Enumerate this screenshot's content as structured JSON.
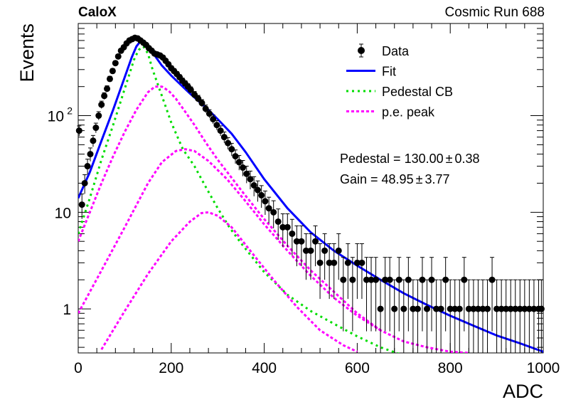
{
  "header": {
    "experiment": "CaloX",
    "run_label": "Cosmic Run 688"
  },
  "fit_results": {
    "pedestal_text": "Pedestal = 130.00",
    "pedestal_err": "0.38",
    "gain_text": "Gain = 48.95",
    "gain_err": "3.77",
    "pm": "±"
  },
  "chart_data": {
    "type": "scatter",
    "title": "",
    "xlabel": "ADC",
    "ylabel": "Events",
    "xlim": [
      0,
      1000
    ],
    "ylim": [
      0.35,
      900
    ],
    "yscale": "log",
    "x_ticks": [
      0,
      200,
      400,
      600,
      800,
      1000
    ],
    "y_ticks": [
      {
        "value": 1,
        "label": "1"
      },
      {
        "value": 10,
        "label": "10"
      },
      {
        "value": 100,
        "label": "10",
        "sup": "2"
      }
    ],
    "grid": false,
    "legend_position": "top-right",
    "colors": {
      "data": "#000000",
      "fit": "#0000ff",
      "pedestal": "#00dd00",
      "pe_peak": "#ff00ff"
    },
    "series": [
      {
        "name": "Data",
        "style": "markers-with-error-bars",
        "x": [
          2,
          8,
          14,
          20,
          26,
          32,
          38,
          44,
          50,
          56,
          62,
          68,
          74,
          80,
          86,
          92,
          98,
          104,
          110,
          116,
          122,
          128,
          134,
          140,
          146,
          152,
          158,
          164,
          170,
          176,
          182,
          188,
          194,
          200,
          206,
          212,
          218,
          224,
          230,
          236,
          242,
          250,
          258,
          266,
          274,
          282,
          290,
          298,
          306,
          314,
          322,
          330,
          338,
          346,
          354,
          362,
          370,
          378,
          386,
          394,
          402,
          410,
          420,
          430,
          440,
          450,
          460,
          470,
          480,
          490,
          500,
          510,
          520,
          530,
          540,
          550,
          560,
          570,
          580,
          590,
          600,
          610,
          620,
          630,
          640,
          650,
          660,
          670,
          680,
          690,
          700,
          710,
          720,
          730,
          740,
          750,
          760,
          770,
          780,
          790,
          800,
          810,
          820,
          830,
          840,
          850,
          860,
          870,
          880,
          890,
          900,
          910,
          920,
          930,
          940,
          950,
          960,
          970,
          980,
          990,
          996
        ],
        "y": [
          70,
          12,
          20,
          30,
          40,
          55,
          75,
          100,
          130,
          160,
          190,
          240,
          290,
          350,
          410,
          470,
          510,
          560,
          600,
          620,
          640,
          630,
          600,
          570,
          540,
          500,
          470,
          440,
          430,
          420,
          400,
          370,
          340,
          310,
          290,
          270,
          250,
          230,
          215,
          200,
          185,
          165,
          150,
          135,
          118,
          105,
          92,
          80,
          70,
          60,
          52,
          45,
          38,
          33,
          29,
          25,
          22,
          19,
          17,
          15,
          13,
          11,
          10,
          8,
          7,
          7,
          6,
          5,
          5,
          4,
          4,
          5,
          3,
          4,
          3,
          3,
          4,
          2,
          3,
          2,
          3,
          3,
          2,
          2,
          2,
          1,
          2,
          2,
          1,
          2,
          1,
          2,
          1,
          1,
          2,
          1,
          2,
          1,
          1,
          2,
          1,
          1,
          1,
          2,
          1,
          1,
          1,
          1,
          1,
          2,
          1,
          1,
          1,
          1,
          1,
          1,
          1,
          1,
          1,
          1,
          1
        ]
      },
      {
        "name": "Fit",
        "style": "solid-line",
        "x": [
          0,
          25,
          50,
          75,
          100,
          115,
          125,
          135,
          145,
          160,
          180,
          200,
          220,
          240,
          260,
          280,
          300,
          330,
          360,
          400,
          450,
          500,
          550,
          600,
          650,
          700,
          750,
          800,
          850,
          900,
          950,
          1000
        ],
        "y": [
          14,
          26,
          55,
          115,
          250,
          400,
          520,
          600,
          560,
          450,
          330,
          260,
          210,
          170,
          140,
          115,
          92,
          65,
          42,
          22,
          11,
          6.2,
          4.0,
          2.8,
          2.0,
          1.45,
          1.1,
          0.85,
          0.67,
          0.53,
          0.44,
          0.36
        ]
      },
      {
        "name": "Pedestal CB",
        "style": "dotted-line",
        "x": [
          0,
          25,
          50,
          75,
          100,
          120,
          130,
          140,
          150,
          160,
          180,
          200,
          225,
          250,
          275,
          300,
          325,
          350,
          400,
          450,
          500,
          550,
          600,
          650,
          700
        ],
        "y": [
          6,
          14,
          35,
          80,
          190,
          380,
          480,
          520,
          440,
          300,
          160,
          85,
          45,
          30,
          18,
          11,
          7,
          4.8,
          2.4,
          1.4,
          0.95,
          0.7,
          0.52,
          0.4,
          0.33
        ]
      },
      {
        "name": "p.e. peak",
        "style": "dashed-line",
        "x": [
          0,
          25,
          50,
          75,
          100,
          125,
          150,
          165,
          180,
          195,
          210,
          230,
          250,
          275,
          300,
          350,
          400,
          450,
          500,
          550,
          600,
          650
        ],
        "y": [
          5,
          10,
          20,
          38,
          68,
          115,
          175,
          200,
          200,
          180,
          150,
          110,
          80,
          52,
          35,
          17,
          8.5,
          4.5,
          2.5,
          1.5,
          0.9,
          0.6
        ]
      },
      {
        "name": "",
        "style": "dashed-line",
        "x": [
          0,
          50,
          100,
          150,
          180,
          210,
          230,
          250,
          280,
          320,
          360,
          400,
          450,
          500,
          550,
          600,
          650,
          700,
          750,
          800,
          840
        ],
        "y": [
          0.9,
          2.5,
          7,
          20,
          33,
          43,
          45,
          43,
          34,
          22,
          13,
          7.5,
          4,
          2.2,
          1.3,
          0.85,
          0.6,
          0.46,
          0.4,
          0.36,
          0.35
        ]
      },
      {
        "name": "",
        "style": "dashed-line",
        "x": [
          50,
          100,
          150,
          200,
          240,
          265,
          280,
          300,
          330,
          370,
          420,
          470,
          520,
          570,
          600
        ],
        "y": [
          0.38,
          0.95,
          2.3,
          5,
          8,
          9.8,
          10,
          9.2,
          7,
          4,
          2,
          1.05,
          0.6,
          0.42,
          0.36
        ]
      }
    ]
  }
}
